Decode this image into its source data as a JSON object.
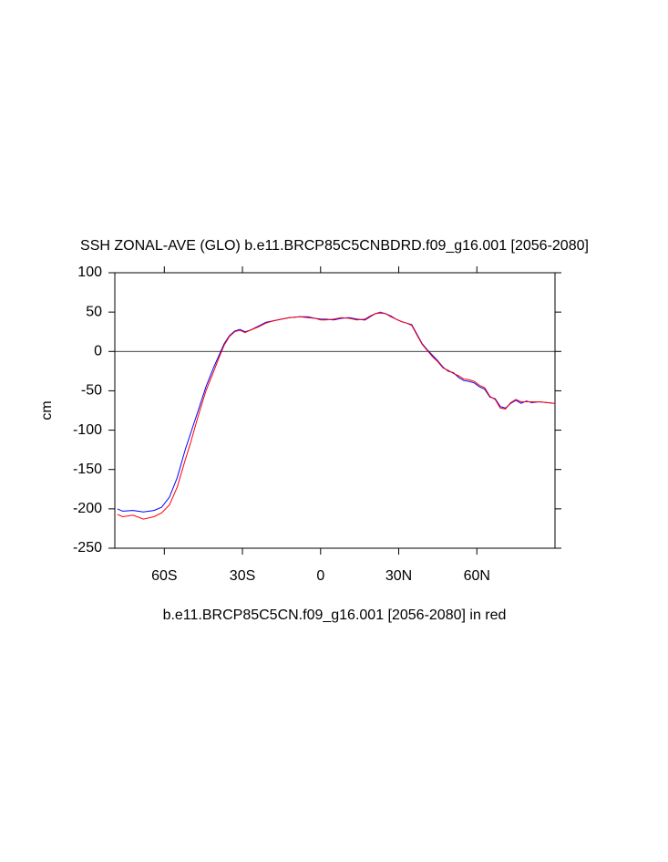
{
  "chart_data": {
    "type": "line",
    "title": "SSH ZONAL-AVE (GLO) b.e11.BRCP85C5CNBDRD.f09_g16.001 [2056-2080]",
    "xlabel": "b.e11.BRCP85C5CN.f09_g16.001 [2056-2080] in red",
    "ylabel": "cm",
    "x": [
      -78,
      -76,
      -72,
      -68,
      -64,
      -61,
      -58,
      -55,
      -52,
      -50,
      -47,
      -44,
      -41,
      -39,
      -37,
      -35,
      -33,
      -31,
      -29,
      -27,
      -24,
      -21,
      -18,
      -15,
      -12,
      -8,
      -5,
      -2,
      0,
      2,
      5,
      8,
      11,
      14,
      17,
      19,
      21,
      23,
      25,
      27,
      29,
      31,
      33,
      35,
      37,
      39,
      41,
      43,
      45,
      47,
      49,
      51,
      53,
      55,
      57,
      59,
      61,
      63,
      65,
      67,
      69,
      71,
      73,
      75,
      77,
      79,
      81,
      84,
      87,
      90
    ],
    "series": [
      {
        "name": "b.e11.BRCP85C5CNBDRD.f09_g16.001",
        "color": "#0000ff",
        "values": [
          -200,
          -203,
          -202,
          -204,
          -202,
          -198,
          -185,
          -160,
          -125,
          -105,
          -75,
          -45,
          -20,
          -5,
          10,
          20,
          26,
          28,
          25,
          27,
          32,
          37,
          39,
          41,
          43,
          44,
          44,
          42,
          41,
          41,
          40,
          42,
          43,
          41,
          40,
          44,
          48,
          49,
          48,
          45,
          41,
          38,
          36,
          34,
          22,
          10,
          2,
          -5,
          -12,
          -20,
          -25,
          -27,
          -33,
          -37,
          -38,
          -40,
          -45,
          -48,
          -58,
          -60,
          -70,
          -72,
          -66,
          -62,
          -66,
          -63,
          -65,
          -64,
          -65,
          -66
        ]
      },
      {
        "name": "b.e11.BRCP85C5CN.f09_g16.001",
        "color": "#ff0000",
        "values": [
          -207,
          -210,
          -208,
          -213,
          -210,
          -205,
          -195,
          -172,
          -138,
          -117,
          -82,
          -50,
          -25,
          -8,
          8,
          19,
          25,
          27,
          24,
          27,
          31,
          36,
          39,
          41,
          43,
          44,
          43,
          42,
          40,
          40,
          41,
          43,
          42,
          40,
          41,
          45,
          48,
          50,
          48,
          44,
          41,
          38,
          36,
          33,
          21,
          9,
          1,
          -7,
          -13,
          -21,
          -24,
          -28,
          -31,
          -35,
          -36,
          -38,
          -43,
          -46,
          -57,
          -61,
          -72,
          -73,
          -65,
          -61,
          -64,
          -64,
          -64,
          -64,
          -65,
          -66
        ]
      }
    ],
    "xlim": [
      -79,
      90
    ],
    "ylim": [
      -250,
      100
    ],
    "xticks": [
      {
        "value": -60,
        "label": "60S"
      },
      {
        "value": -30,
        "label": "30S"
      },
      0,
      {
        "value": 30,
        "label": "30N"
      },
      {
        "value": 60,
        "label": "60N"
      }
    ],
    "yticks": [
      -250,
      -200,
      -150,
      -100,
      -50,
      0,
      50,
      100
    ],
    "hline": 0,
    "legend": false
  }
}
